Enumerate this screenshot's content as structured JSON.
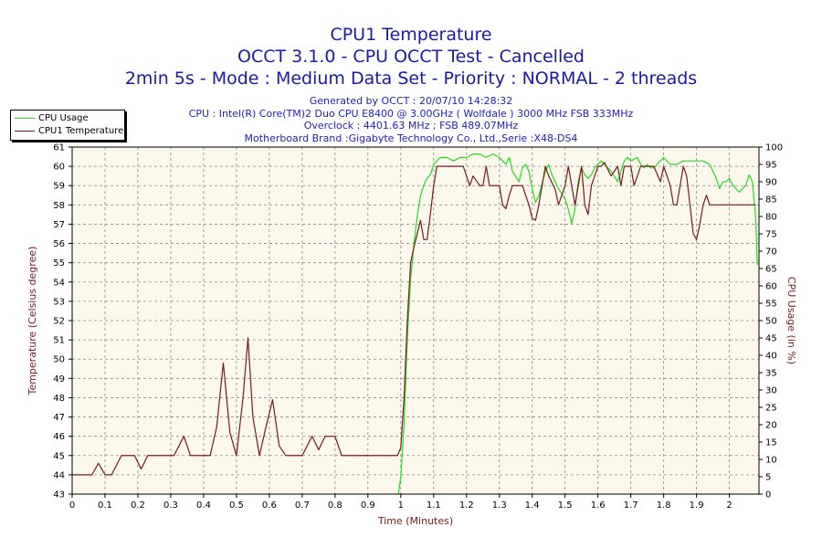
{
  "chart_data": {
    "type": "line",
    "title": "CPU1 Temperature",
    "subtitle": "OCCT 3.1.0 - CPU OCCT Test - Cancelled",
    "subtitle2": "2min 5s - Mode : Medium Data Set - Priority : NORMAL - 2 threads",
    "info_lines": [
      "Generated by OCCT : 20/07/10 14:28:32",
      "CPU : Intel(R) Core(TM)2 Duo CPU E8400 @ 3.00GHz ( Wolfdale ) 3000 MHz FSB 333MHz",
      "Overclock : 4401.63 MHz ; FSB 489.07MHz",
      "Motherboard Brand :Gigabyte Technology Co., Ltd.,Serie :X48-DS4"
    ],
    "xlabel": "Time (Minutes)",
    "ylabel": "Temperature (Celsius degree)",
    "y2label": "CPU Usage (in %)",
    "xlim": [
      0,
      2.09
    ],
    "ylim": [
      43,
      61
    ],
    "y2lim": [
      0,
      100
    ],
    "x_ticks": [
      "0",
      "0.1",
      "0.2",
      "0.3",
      "0.4",
      "0.5",
      "0.6",
      "0.7",
      "0.8",
      "0.9",
      "1",
      "1.1",
      "1.2",
      "1.3",
      "1.4",
      "1.5",
      "1.6",
      "1.7",
      "1.8",
      "1.9",
      "2"
    ],
    "y_ticks": [
      "43",
      "44",
      "45",
      "46",
      "47",
      "48",
      "49",
      "50",
      "51",
      "52",
      "53",
      "54",
      "55",
      "56",
      "57",
      "58",
      "59",
      "60",
      "61"
    ],
    "y2_ticks": [
      "0",
      "5",
      "10",
      "15",
      "20",
      "25",
      "30",
      "35",
      "40",
      "45",
      "50",
      "55",
      "60",
      "65",
      "70",
      "75",
      "80",
      "85",
      "90",
      "95",
      "100"
    ],
    "grid": true,
    "legend_position": "top-left outside",
    "series": [
      {
        "name": "CPU Usage",
        "color": "#22dd22",
        "axis": "right",
        "points": [
          [
            0.993,
            0
          ],
          [
            1.0,
            5
          ],
          [
            1.01,
            20
          ],
          [
            1.02,
            45
          ],
          [
            1.03,
            62
          ],
          [
            1.04,
            72
          ],
          [
            1.05,
            80
          ],
          [
            1.06,
            86
          ],
          [
            1.07,
            89
          ],
          [
            1.08,
            91
          ],
          [
            1.09,
            92
          ],
          [
            1.1,
            95
          ],
          [
            1.12,
            97
          ],
          [
            1.14,
            97
          ],
          [
            1.16,
            96
          ],
          [
            1.18,
            97
          ],
          [
            1.2,
            97
          ],
          [
            1.22,
            98
          ],
          [
            1.24,
            98
          ],
          [
            1.26,
            97
          ],
          [
            1.28,
            98
          ],
          [
            1.3,
            97
          ],
          [
            1.32,
            95
          ],
          [
            1.33,
            97
          ],
          [
            1.34,
            93
          ],
          [
            1.36,
            90
          ],
          [
            1.37,
            94
          ],
          [
            1.38,
            95
          ],
          [
            1.39,
            93
          ],
          [
            1.4,
            88
          ],
          [
            1.41,
            84
          ],
          [
            1.42,
            86
          ],
          [
            1.44,
            93
          ],
          [
            1.45,
            95
          ],
          [
            1.46,
            92
          ],
          [
            1.47,
            90
          ],
          [
            1.48,
            88
          ],
          [
            1.5,
            85
          ],
          [
            1.51,
            82
          ],
          [
            1.52,
            78
          ],
          [
            1.53,
            82
          ],
          [
            1.54,
            90
          ],
          [
            1.55,
            94
          ],
          [
            1.56,
            92
          ],
          [
            1.57,
            91
          ],
          [
            1.58,
            92
          ],
          [
            1.59,
            94
          ],
          [
            1.6,
            95
          ],
          [
            1.61,
            96
          ],
          [
            1.62,
            95
          ],
          [
            1.63,
            94
          ],
          [
            1.64,
            93
          ],
          [
            1.66,
            90
          ],
          [
            1.67,
            93
          ],
          [
            1.68,
            96
          ],
          [
            1.69,
            97
          ],
          [
            1.7,
            96
          ],
          [
            1.72,
            97
          ],
          [
            1.73,
            95
          ],
          [
            1.74,
            94
          ],
          [
            1.75,
            95
          ],
          [
            1.76,
            94
          ],
          [
            1.77,
            94
          ],
          [
            1.79,
            96
          ],
          [
            1.8,
            97
          ],
          [
            1.82,
            95
          ],
          [
            1.84,
            95
          ],
          [
            1.86,
            96
          ],
          [
            1.88,
            96
          ],
          [
            1.9,
            96
          ],
          [
            1.92,
            96
          ],
          [
            1.94,
            95
          ],
          [
            1.95,
            93
          ],
          [
            1.96,
            91
          ],
          [
            1.97,
            88
          ],
          [
            1.98,
            90
          ],
          [
            1.99,
            90
          ],
          [
            2.0,
            91
          ],
          [
            2.01,
            89
          ],
          [
            2.03,
            87
          ],
          [
            2.05,
            89
          ],
          [
            2.06,
            92
          ],
          [
            2.07,
            90
          ],
          [
            2.08,
            80
          ],
          [
            2.085,
            66
          ]
        ]
      },
      {
        "name": "CPU1 Temperature",
        "color": "#7a1a1a",
        "axis": "left",
        "points": [
          [
            0,
            44
          ],
          [
            0.06,
            44
          ],
          [
            0.08,
            44.6
          ],
          [
            0.1,
            44
          ],
          [
            0.12,
            44
          ],
          [
            0.15,
            45
          ],
          [
            0.19,
            45
          ],
          [
            0.21,
            44.3
          ],
          [
            0.23,
            45
          ],
          [
            0.31,
            45
          ],
          [
            0.34,
            46
          ],
          [
            0.36,
            45
          ],
          [
            0.42,
            45
          ],
          [
            0.44,
            46.5
          ],
          [
            0.46,
            49.8
          ],
          [
            0.48,
            46.2
          ],
          [
            0.5,
            45
          ],
          [
            0.52,
            48
          ],
          [
            0.535,
            51.1
          ],
          [
            0.55,
            47
          ],
          [
            0.57,
            45
          ],
          [
            0.59,
            46.5
          ],
          [
            0.61,
            47.9
          ],
          [
            0.63,
            45.5
          ],
          [
            0.65,
            45
          ],
          [
            0.7,
            45
          ],
          [
            0.73,
            46
          ],
          [
            0.75,
            45.3
          ],
          [
            0.77,
            46
          ],
          [
            0.8,
            46
          ],
          [
            0.82,
            45
          ],
          [
            0.99,
            45
          ],
          [
            1.0,
            45.4
          ],
          [
            1.01,
            48
          ],
          [
            1.02,
            52
          ],
          [
            1.03,
            55
          ],
          [
            1.04,
            55.8
          ],
          [
            1.05,
            56.5
          ],
          [
            1.06,
            57.2
          ],
          [
            1.07,
            56.2
          ],
          [
            1.08,
            56.2
          ],
          [
            1.09,
            57.5
          ],
          [
            1.1,
            59
          ],
          [
            1.11,
            60
          ],
          [
            1.19,
            60
          ],
          [
            1.21,
            59
          ],
          [
            1.22,
            59.5
          ],
          [
            1.24,
            59
          ],
          [
            1.25,
            59
          ],
          [
            1.26,
            60
          ],
          [
            1.27,
            59
          ],
          [
            1.3,
            59
          ],
          [
            1.31,
            58
          ],
          [
            1.32,
            57.8
          ],
          [
            1.33,
            58.5
          ],
          [
            1.34,
            59
          ],
          [
            1.37,
            59
          ],
          [
            1.39,
            58
          ],
          [
            1.4,
            57.3
          ],
          [
            1.41,
            57.2
          ],
          [
            1.42,
            58
          ],
          [
            1.44,
            60
          ],
          [
            1.45,
            59.5
          ],
          [
            1.47,
            58.8
          ],
          [
            1.48,
            58
          ],
          [
            1.5,
            59
          ],
          [
            1.51,
            60
          ],
          [
            1.52,
            59
          ],
          [
            1.53,
            58
          ],
          [
            1.54,
            59
          ],
          [
            1.55,
            60
          ],
          [
            1.56,
            58
          ],
          [
            1.57,
            57.5
          ],
          [
            1.58,
            59
          ],
          [
            1.6,
            60
          ],
          [
            1.61,
            60
          ],
          [
            1.62,
            60.2
          ],
          [
            1.64,
            59.5
          ],
          [
            1.66,
            60
          ],
          [
            1.67,
            59
          ],
          [
            1.68,
            60
          ],
          [
            1.7,
            60
          ],
          [
            1.71,
            59
          ],
          [
            1.72,
            59.5
          ],
          [
            1.73,
            60
          ],
          [
            1.77,
            60
          ],
          [
            1.79,
            59.2
          ],
          [
            1.8,
            60
          ],
          [
            1.82,
            59
          ],
          [
            1.83,
            58
          ],
          [
            1.84,
            58
          ],
          [
            1.85,
            59
          ],
          [
            1.86,
            60
          ],
          [
            1.87,
            59.5
          ],
          [
            1.88,
            58
          ],
          [
            1.89,
            56.5
          ],
          [
            1.9,
            56.2
          ],
          [
            1.91,
            57
          ],
          [
            1.92,
            58
          ],
          [
            1.93,
            58.5
          ],
          [
            1.94,
            58
          ],
          [
            2.08,
            58
          ]
        ]
      }
    ]
  }
}
